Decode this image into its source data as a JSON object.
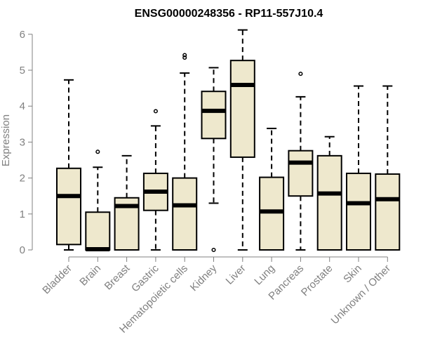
{
  "chart_data": {
    "type": "boxplot",
    "title": "ENSG00000248356 - RP11-557J10.4",
    "xlabel": "",
    "ylabel": "Expression",
    "ylim": [
      0,
      6
    ],
    "yticks": [
      0,
      1,
      2,
      3,
      4,
      5,
      6
    ],
    "grid": false,
    "box_fill": "#EEE8CD",
    "box_stroke": "#000000",
    "axis_color": "#808080",
    "categories": [
      "Bladder",
      "Brain",
      "Breast",
      "Gastric",
      "Hematopoietic cells",
      "Kidney",
      "Liver",
      "Lung",
      "Pancreas",
      "Prostate",
      "Skin",
      "Unknown / Other"
    ],
    "boxes": [
      {
        "label": "Bladder",
        "whisker_low": 0,
        "q1": 0.15,
        "median": 1.5,
        "q3": 2.27,
        "whisker_high": 4.73,
        "outliers": []
      },
      {
        "label": "Brain",
        "whisker_low": 0,
        "q1": 0,
        "median": 0.02,
        "q3": 1.05,
        "whisker_high": 2.3,
        "outliers": [
          2.73
        ]
      },
      {
        "label": "Breast",
        "whisker_low": 0,
        "q1": 0,
        "median": 1.22,
        "q3": 1.45,
        "whisker_high": 2.62,
        "outliers": []
      },
      {
        "label": "Gastric",
        "whisker_low": 0,
        "q1": 1.1,
        "median": 1.62,
        "q3": 2.13,
        "whisker_high": 3.45,
        "outliers": [
          3.86
        ]
      },
      {
        "label": "Hematopoietic cells",
        "whisker_low": 0,
        "q1": 0,
        "median": 1.24,
        "q3": 2.0,
        "whisker_high": 4.92,
        "outliers": [
          5.35,
          5.42
        ]
      },
      {
        "label": "Kidney",
        "whisker_low": 1.3,
        "q1": 3.1,
        "median": 3.87,
        "q3": 4.41,
        "whisker_high": 5.07,
        "outliers": [
          0
        ]
      },
      {
        "label": "Liver",
        "whisker_low": 0,
        "q1": 2.58,
        "median": 4.59,
        "q3": 5.27,
        "whisker_high": 6.12,
        "outliers": []
      },
      {
        "label": "Lung",
        "whisker_low": 0,
        "q1": 0,
        "median": 1.07,
        "q3": 2.02,
        "whisker_high": 3.38,
        "outliers": []
      },
      {
        "label": "Pancreas",
        "whisker_low": 0,
        "q1": 1.5,
        "median": 2.43,
        "q3": 2.76,
        "whisker_high": 4.26,
        "outliers": [
          4.9
        ]
      },
      {
        "label": "Prostate",
        "whisker_low": 0,
        "q1": 0,
        "median": 1.57,
        "q3": 2.62,
        "whisker_high": 3.15,
        "outliers": []
      },
      {
        "label": "Skin",
        "whisker_low": 0,
        "q1": 0,
        "median": 1.3,
        "q3": 2.13,
        "whisker_high": 4.56,
        "outliers": []
      },
      {
        "label": "Unknown / Other",
        "whisker_low": 0,
        "q1": 0,
        "median": 1.41,
        "q3": 2.11,
        "whisker_high": 4.56,
        "outliers": []
      }
    ]
  }
}
